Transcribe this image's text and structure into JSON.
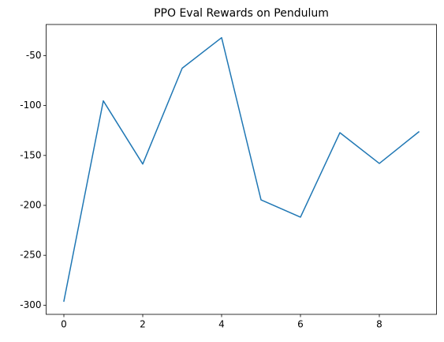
{
  "chart_data": {
    "type": "line",
    "title": "PPO Eval Rewards on Pendulum",
    "x": [
      0,
      1,
      2,
      3,
      4,
      5,
      6,
      7,
      8,
      9
    ],
    "series": [
      {
        "color": "#1f77b4",
        "values": [
          -296,
          -95.3,
          -158.6,
          -62.6,
          -32,
          -194.5,
          -211.8,
          -127.2,
          -158,
          -126.4
        ]
      }
    ],
    "xlim": [
      -0.45,
      9.45
    ],
    "xticks": [
      0,
      2,
      4,
      6,
      8
    ],
    "ylim": [
      -309.2,
      -18.8
    ],
    "yticks": [
      -300,
      -250,
      -200,
      -150,
      -100,
      -50
    ],
    "grid": false
  }
}
